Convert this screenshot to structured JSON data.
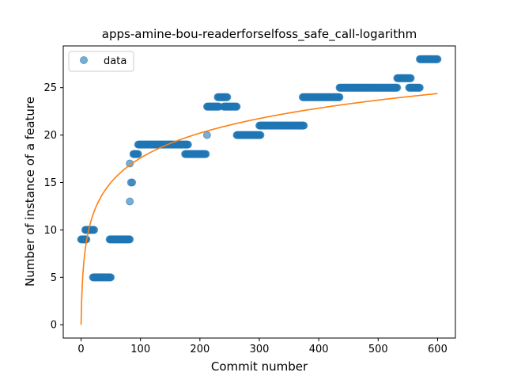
{
  "chart_data": {
    "type": "scatter",
    "title": "apps-amine-bou-readerforselfoss_safe_call-logarithm",
    "xlabel": "Commit number",
    "ylabel": "Number of instance of a feature",
    "xlim": [
      -30,
      630
    ],
    "ylim": [
      -1.4,
      29.4
    ],
    "xticks": [
      0,
      100,
      200,
      300,
      400,
      500,
      600
    ],
    "yticks": [
      0,
      5,
      10,
      15,
      20,
      25
    ],
    "grid": false,
    "legend": {
      "location": "top-left",
      "entries": [
        "data"
      ]
    },
    "colors": {
      "points": "#1f77b4",
      "fit": "#ff7f0e"
    },
    "series": [
      {
        "name": "data",
        "kind": "scatter",
        "segments": [
          {
            "x_from": 0,
            "x_to": 9,
            "y": 9
          },
          {
            "x_from": 7,
            "x_to": 22,
            "y": 10
          },
          {
            "x_from": 20,
            "x_to": 50,
            "y": 5
          },
          {
            "x_from": 48,
            "x_to": 82,
            "y": 9
          },
          {
            "x_from": 88,
            "x_to": 96,
            "y": 18
          },
          {
            "x_from": 96,
            "x_to": 180,
            "y": 19
          },
          {
            "x_from": 175,
            "x_to": 210,
            "y": 18
          },
          {
            "x_from": 212,
            "x_to": 232,
            "y": 23
          },
          {
            "x_from": 230,
            "x_to": 246,
            "y": 24
          },
          {
            "x_from": 240,
            "x_to": 262,
            "y": 23
          },
          {
            "x_from": 262,
            "x_to": 302,
            "y": 20
          },
          {
            "x_from": 300,
            "x_to": 375,
            "y": 21
          },
          {
            "x_from": 373,
            "x_to": 435,
            "y": 24
          },
          {
            "x_from": 435,
            "x_to": 532,
            "y": 25
          },
          {
            "x_from": 532,
            "x_to": 555,
            "y": 26
          },
          {
            "x_from": 552,
            "x_to": 570,
            "y": 25
          },
          {
            "x_from": 570,
            "x_to": 600,
            "y": 28
          }
        ],
        "singles": [
          {
            "x": 82,
            "y": 17
          },
          {
            "x": 82,
            "y": 13
          },
          {
            "x": 84,
            "y": 15
          },
          {
            "x": 86,
            "y": 15
          },
          {
            "x": 212,
            "y": 20
          }
        ]
      },
      {
        "name": "",
        "kind": "fit",
        "model": "a*ln(x+1)",
        "a": 3.81,
        "x_range": [
          0,
          600
        ]
      }
    ]
  }
}
